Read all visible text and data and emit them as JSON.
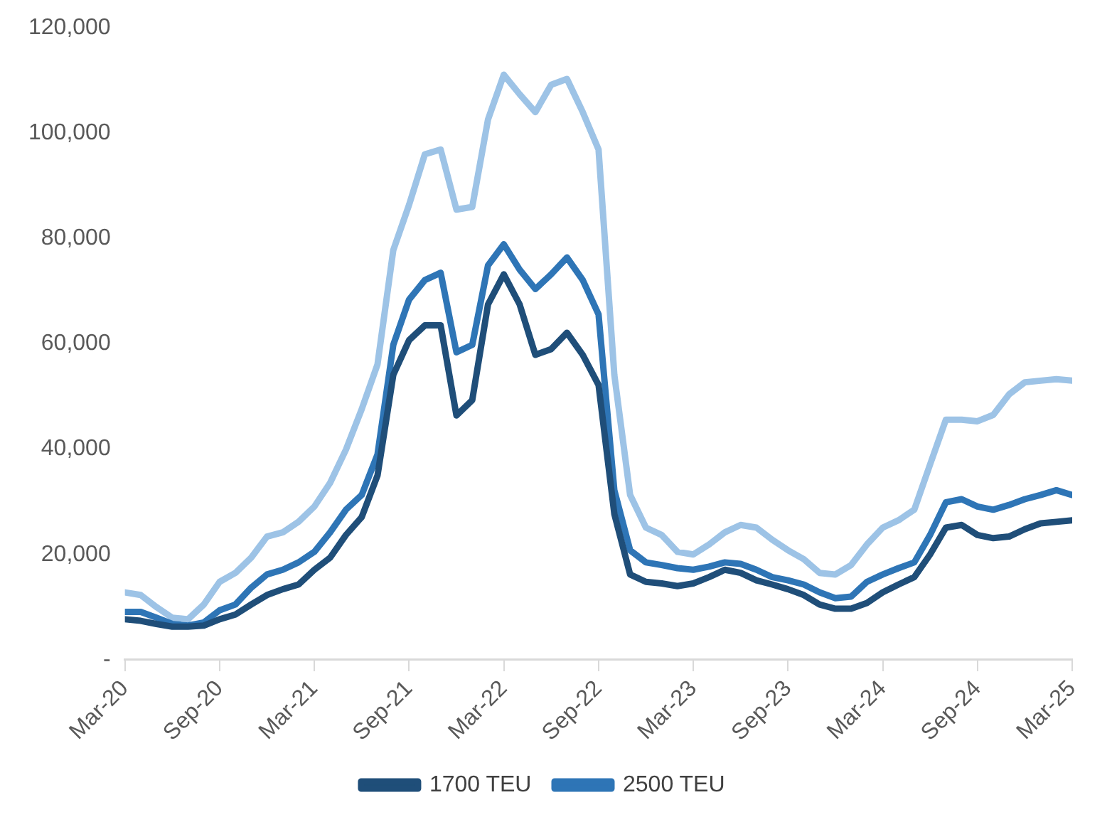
{
  "chart_data": {
    "type": "line",
    "x": [
      "2020-03",
      "2020-04",
      "2020-05",
      "2020-06",
      "2020-07",
      "2020-08",
      "2020-09",
      "2020-10",
      "2020-11",
      "2020-12",
      "2021-01",
      "2021-02",
      "2021-03",
      "2021-04",
      "2021-05",
      "2021-06",
      "2021-07",
      "2021-08",
      "2021-09",
      "2021-10",
      "2021-11",
      "2021-12",
      "2022-01",
      "2022-02",
      "2022-03",
      "2022-04",
      "2022-05",
      "2022-06",
      "2022-07",
      "2022-08",
      "2022-09",
      "2022-10",
      "2022-11",
      "2022-12",
      "2023-01",
      "2023-02",
      "2023-03",
      "2023-04",
      "2023-05",
      "2023-06",
      "2023-07",
      "2023-08",
      "2023-09",
      "2023-10",
      "2023-11",
      "2023-12",
      "2024-01",
      "2024-02",
      "2024-03",
      "2024-04",
      "2024-05",
      "2024-06",
      "2024-07",
      "2024-08",
      "2024-09",
      "2024-10",
      "2024-11",
      "2024-12",
      "2025-01",
      "2025-02",
      "2025-03"
    ],
    "series": [
      {
        "name": "1700 TEU",
        "color": "#1f4e79",
        "values": [
          7700,
          7400,
          6800,
          6300,
          6300,
          6500,
          7700,
          8600,
          10500,
          12300,
          13400,
          14300,
          17100,
          19400,
          23700,
          27100,
          35000,
          54100,
          60700,
          63500,
          63500,
          46400,
          49300,
          67500,
          73200,
          67500,
          57900,
          59000,
          62100,
          57900,
          52200,
          27700,
          16200,
          14800,
          14500,
          14000,
          14500,
          15700,
          17100,
          16500,
          15100,
          14300,
          13400,
          12300,
          10500,
          9700,
          9700,
          10800,
          12800,
          14300,
          15700,
          20000,
          25100,
          25600,
          23700,
          23100,
          23400,
          24800,
          25900,
          26200,
          26500
        ]
      },
      {
        "name": "2500 TEU",
        "color": "#2e75b6",
        "values": [
          9100,
          9100,
          8000,
          6800,
          6500,
          7100,
          9400,
          10500,
          13700,
          16200,
          17100,
          18500,
          20500,
          24200,
          28500,
          31300,
          39000,
          59800,
          68400,
          72100,
          73500,
          58400,
          59800,
          74900,
          78900,
          74100,
          70400,
          73200,
          76400,
          72100,
          65600,
          32200,
          20800,
          18500,
          18000,
          17400,
          17100,
          17700,
          18500,
          18200,
          17100,
          15700,
          15100,
          14300,
          12800,
          11700,
          12000,
          14800,
          16200,
          17400,
          18500,
          23700,
          29900,
          30500,
          29100,
          28500,
          29400,
          30500,
          31300,
          32200,
          31300
        ]
      },
      {
        "color": "#9dc3e6",
        "values": [
          12800,
          12300,
          10000,
          8000,
          7700,
          10500,
          14800,
          16500,
          19400,
          23400,
          24200,
          26200,
          29100,
          33600,
          39900,
          47600,
          56100,
          77800,
          86400,
          96000,
          96900,
          85500,
          86000,
          102600,
          111100,
          107400,
          104000,
          109200,
          110300,
          104000,
          96900,
          54100,
          31300,
          25100,
          23700,
          20500,
          20000,
          21900,
          24200,
          25600,
          25100,
          22800,
          20800,
          19100,
          16500,
          16200,
          18000,
          21900,
          25100,
          26500,
          28500,
          37100,
          45600,
          45600,
          45300,
          46500,
          50400,
          52700,
          53000,
          53300,
          53000
        ]
      }
    ],
    "xlim": [
      "2020-03",
      "2025-03"
    ],
    "xticks": [
      {
        "value": "2020-03",
        "label": "Mar-20"
      },
      {
        "value": "2020-09",
        "label": "Sep-20"
      },
      {
        "value": "2021-03",
        "label": "Mar-21"
      },
      {
        "value": "2021-09",
        "label": "Sep-21"
      },
      {
        "value": "2022-03",
        "label": "Mar-22"
      },
      {
        "value": "2022-09",
        "label": "Sep-22"
      },
      {
        "value": "2023-03",
        "label": "Mar-23"
      },
      {
        "value": "2023-09",
        "label": "Sep-23"
      },
      {
        "value": "2024-03",
        "label": "Mar-24"
      },
      {
        "value": "2024-09",
        "label": "Sep-24"
      },
      {
        "value": "2025-03",
        "label": "Mar-25"
      }
    ],
    "ylim": [
      0,
      120000
    ],
    "yticks": [
      {
        "value": 0,
        "label": "-"
      },
      {
        "value": 20000,
        "label": "20,000"
      },
      {
        "value": 40000,
        "label": "40,000"
      },
      {
        "value": 60000,
        "label": "60,000"
      },
      {
        "value": 80000,
        "label": "80,000"
      },
      {
        "value": 100000,
        "label": "100,000"
      },
      {
        "value": 120000,
        "label": "120,000"
      }
    ],
    "legend": "bottom",
    "marker": "none",
    "line_style": "solid",
    "grid": false
  }
}
